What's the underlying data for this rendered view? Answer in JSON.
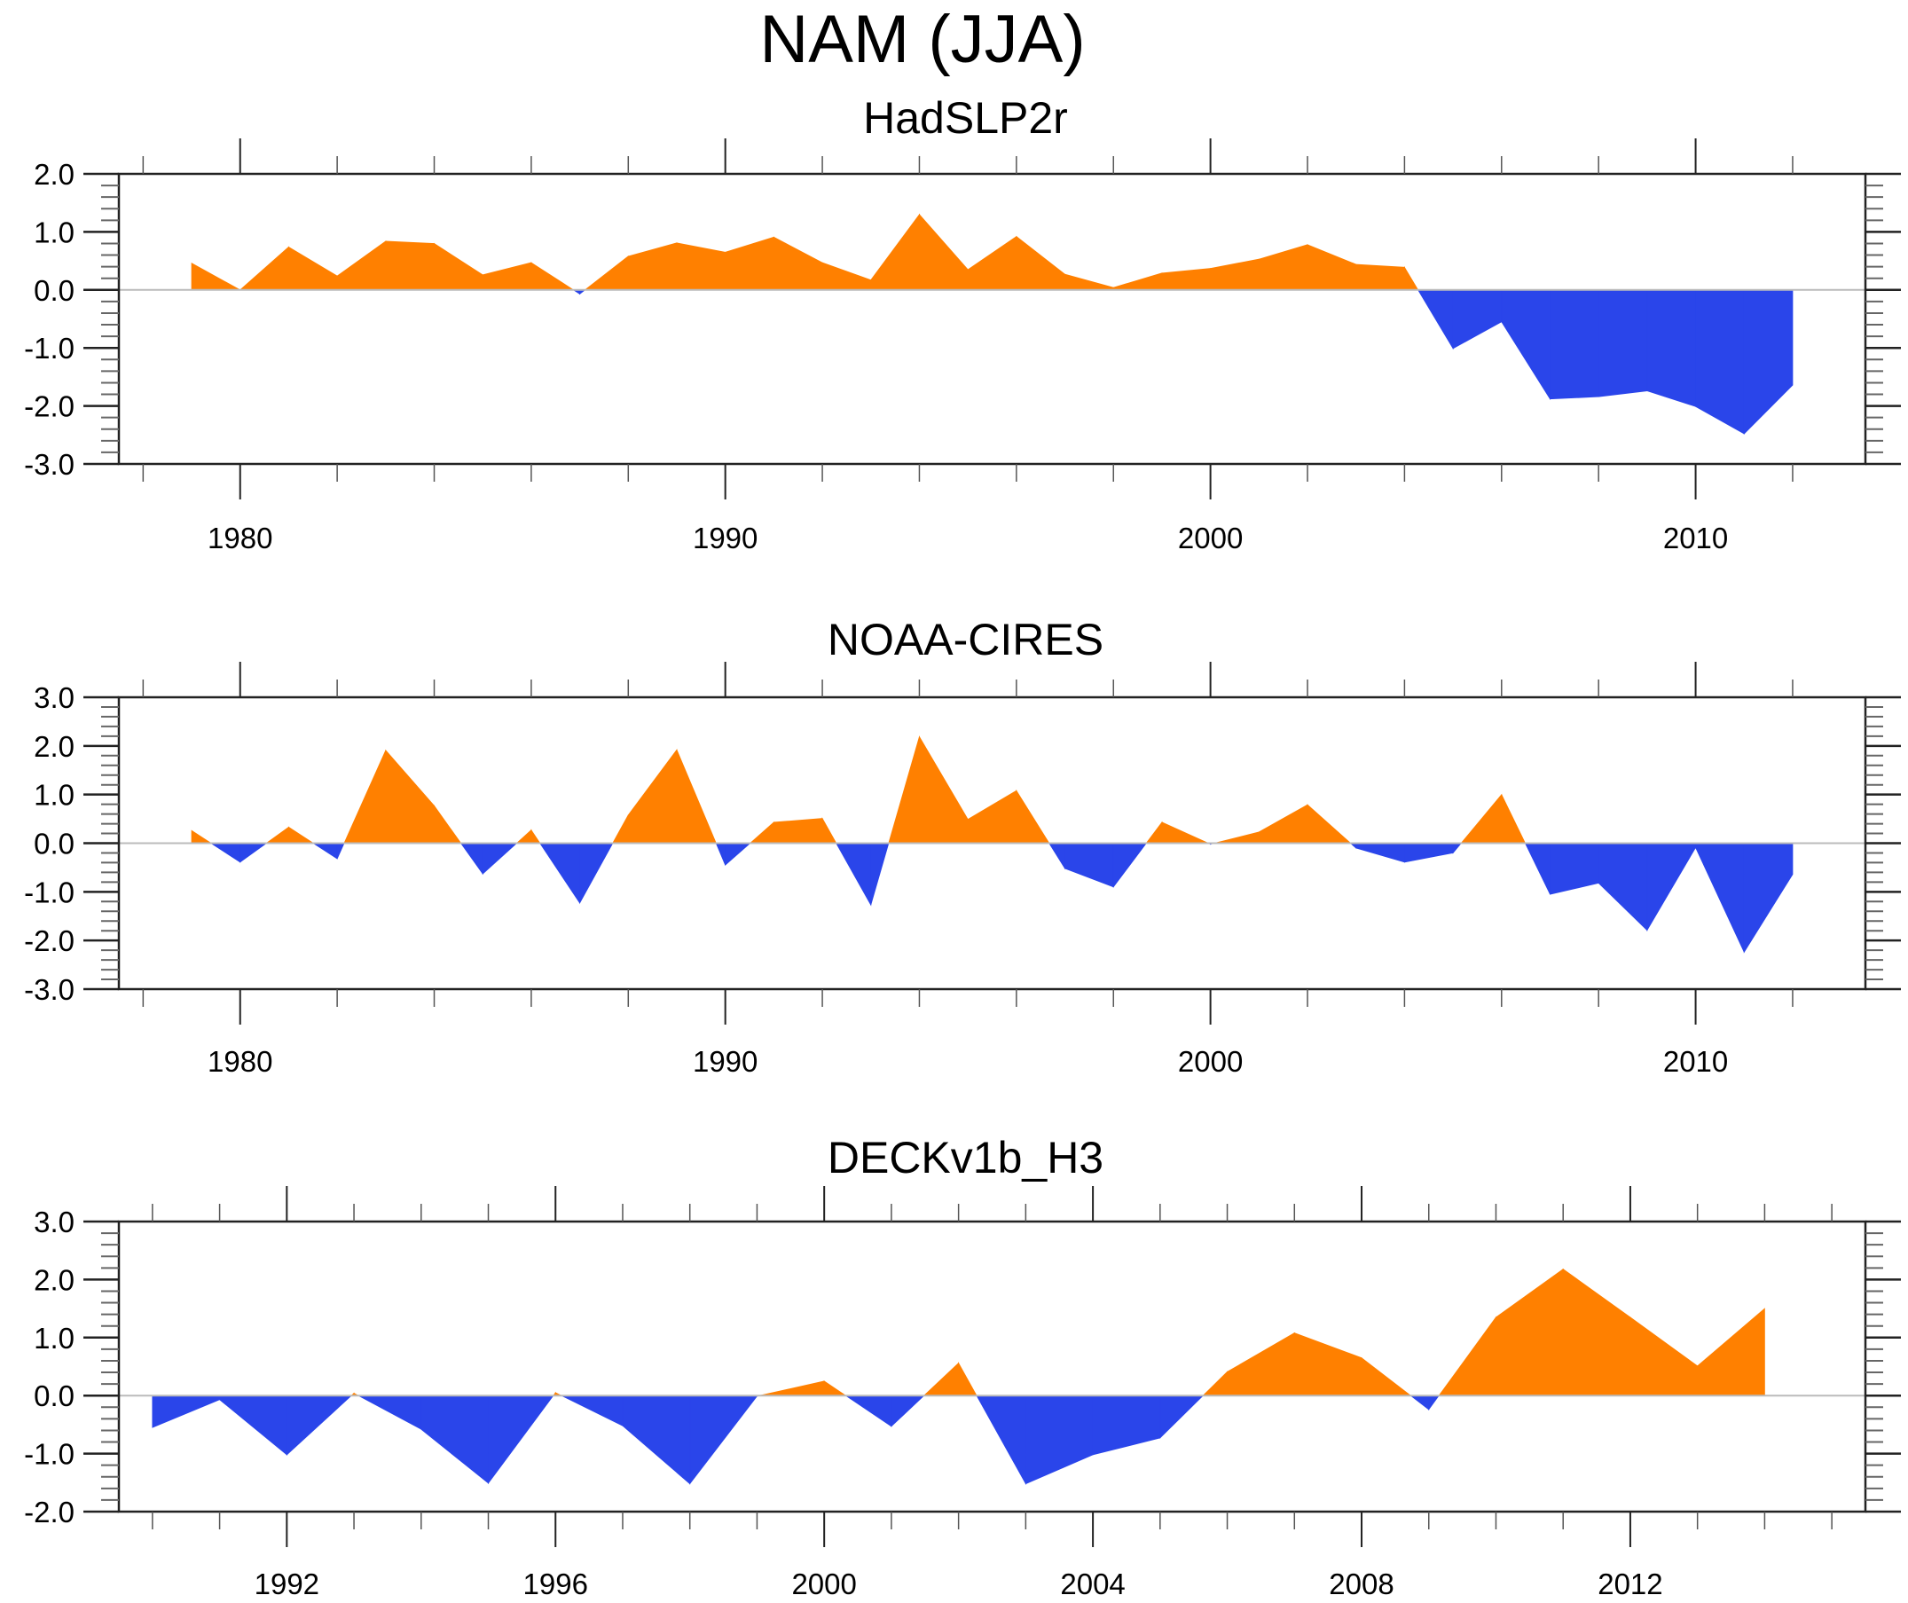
{
  "title": "NAM (JJA)",
  "colors": {
    "positive": "#FF8000",
    "negative": "#2A45EA",
    "axis": "#000000",
    "zero_line": "#BBBBBB"
  },
  "chart_data": [
    {
      "type": "area",
      "title": "HadSLP2r",
      "xlabel": "",
      "ylabel": "",
      "xlim": [
        1977.5,
        2013.5
      ],
      "ylim": [
        -3.0,
        2.0
      ],
      "x_major_ticks": [
        1980,
        1990,
        2000,
        2010
      ],
      "x_tick_labels": [
        "1980",
        "1990",
        "2000",
        "2010"
      ],
      "x_minor_step": 2,
      "y_ticks": [
        2.0,
        1.0,
        0.0,
        -1.0,
        -2.0,
        -3.0
      ],
      "y_tick_labels": [
        "2.0",
        "1.0",
        "0.0",
        "-1.0",
        "-2.0",
        "-3.0"
      ],
      "y_minor_step": 0.2,
      "grid": false,
      "fill_rule": "orange above zero, blue below zero",
      "x": [
        1979,
        1980,
        1981,
        1982,
        1983,
        1984,
        1985,
        1986,
        1987,
        1988,
        1989,
        1990,
        1991,
        1992,
        1993,
        1994,
        1995,
        1996,
        1997,
        1998,
        1999,
        2000,
        2001,
        2002,
        2003,
        2004,
        2005,
        2006,
        2007,
        2008,
        2009,
        2010,
        2011,
        2012
      ],
      "values": [
        0.46,
        0.0,
        0.74,
        0.24,
        0.84,
        0.8,
        0.26,
        0.47,
        -0.07,
        0.58,
        0.81,
        0.65,
        0.91,
        0.47,
        0.17,
        1.3,
        0.35,
        0.92,
        0.27,
        0.04,
        0.29,
        0.37,
        0.53,
        0.78,
        0.44,
        0.39,
        -1.01,
        -0.55,
        -1.88,
        -1.84,
        -1.74,
        -2.01,
        -2.48,
        -1.64
      ]
    },
    {
      "type": "area",
      "title": "NOAA-CIRES",
      "xlabel": "",
      "ylabel": "",
      "xlim": [
        1977.5,
        2013.5
      ],
      "ylim": [
        -3.0,
        3.0
      ],
      "x_major_ticks": [
        1980,
        1990,
        2000,
        2010
      ],
      "x_tick_labels": [
        "1980",
        "1990",
        "2000",
        "2010"
      ],
      "x_minor_step": 2,
      "y_ticks": [
        3.0,
        2.0,
        1.0,
        0.0,
        -1.0,
        -2.0,
        -3.0
      ],
      "y_tick_labels": [
        "3.0",
        "2.0",
        "1.0",
        "0.0",
        "-1.0",
        "-2.0",
        "-3.0"
      ],
      "y_minor_step": 0.2,
      "grid": false,
      "fill_rule": "orange above zero, blue below zero",
      "x": [
        1979,
        1980,
        1981,
        1982,
        1983,
        1984,
        1985,
        1986,
        1987,
        1988,
        1989,
        1990,
        1991,
        1992,
        1993,
        1994,
        1995,
        1996,
        1997,
        1998,
        1999,
        2000,
        2001,
        2002,
        2003,
        2004,
        2005,
        2006,
        2007,
        2008,
        2009,
        2010,
        2011,
        2012
      ],
      "values": [
        0.26,
        -0.39,
        0.33,
        -0.32,
        1.91,
        0.77,
        -0.63,
        0.27,
        -1.23,
        0.58,
        1.92,
        -0.45,
        0.43,
        0.51,
        -1.27,
        2.19,
        0.49,
        1.08,
        -0.52,
        -0.9,
        0.43,
        -0.02,
        0.23,
        0.79,
        -0.1,
        -0.39,
        -0.2,
        1.0,
        -1.05,
        -0.82,
        -1.79,
        -0.09,
        -2.24,
        -0.64
      ]
    },
    {
      "type": "area",
      "title": "DECKv1b_H3",
      "xlabel": "",
      "ylabel": "",
      "xlim": [
        1989.5,
        2015.5
      ],
      "ylim": [
        -2.0,
        3.0
      ],
      "x_major_ticks": [
        1992,
        1996,
        2000,
        2004,
        2008,
        2012
      ],
      "x_tick_labels": [
        "1992",
        "1996",
        "2000",
        "2004",
        "2008",
        "2012"
      ],
      "x_minor_step": 1,
      "y_ticks": [
        3.0,
        2.0,
        1.0,
        0.0,
        -1.0,
        -2.0
      ],
      "y_tick_labels": [
        "3.0",
        "2.0",
        "1.0",
        "0.0",
        "-1.0",
        "-2.0"
      ],
      "y_minor_step": 0.2,
      "grid": false,
      "fill_rule": "orange above zero, blue below zero",
      "x": [
        1990,
        1991,
        1992,
        1993,
        1994,
        1995,
        1996,
        1997,
        1998,
        1999,
        2000,
        2001,
        2002,
        2003,
        2004,
        2005,
        2006,
        2007,
        2008,
        2009,
        2010,
        2011,
        2012,
        2013,
        2014
      ],
      "values": [
        -0.55,
        -0.07,
        -1.02,
        0.04,
        -0.58,
        -1.51,
        0.05,
        -0.52,
        -1.52,
        -0.01,
        0.25,
        -0.53,
        0.56,
        -1.52,
        -1.02,
        -0.73,
        0.41,
        1.08,
        0.65,
        -0.24,
        1.35,
        2.18,
        1.35,
        0.51,
        1.5
      ]
    }
  ]
}
